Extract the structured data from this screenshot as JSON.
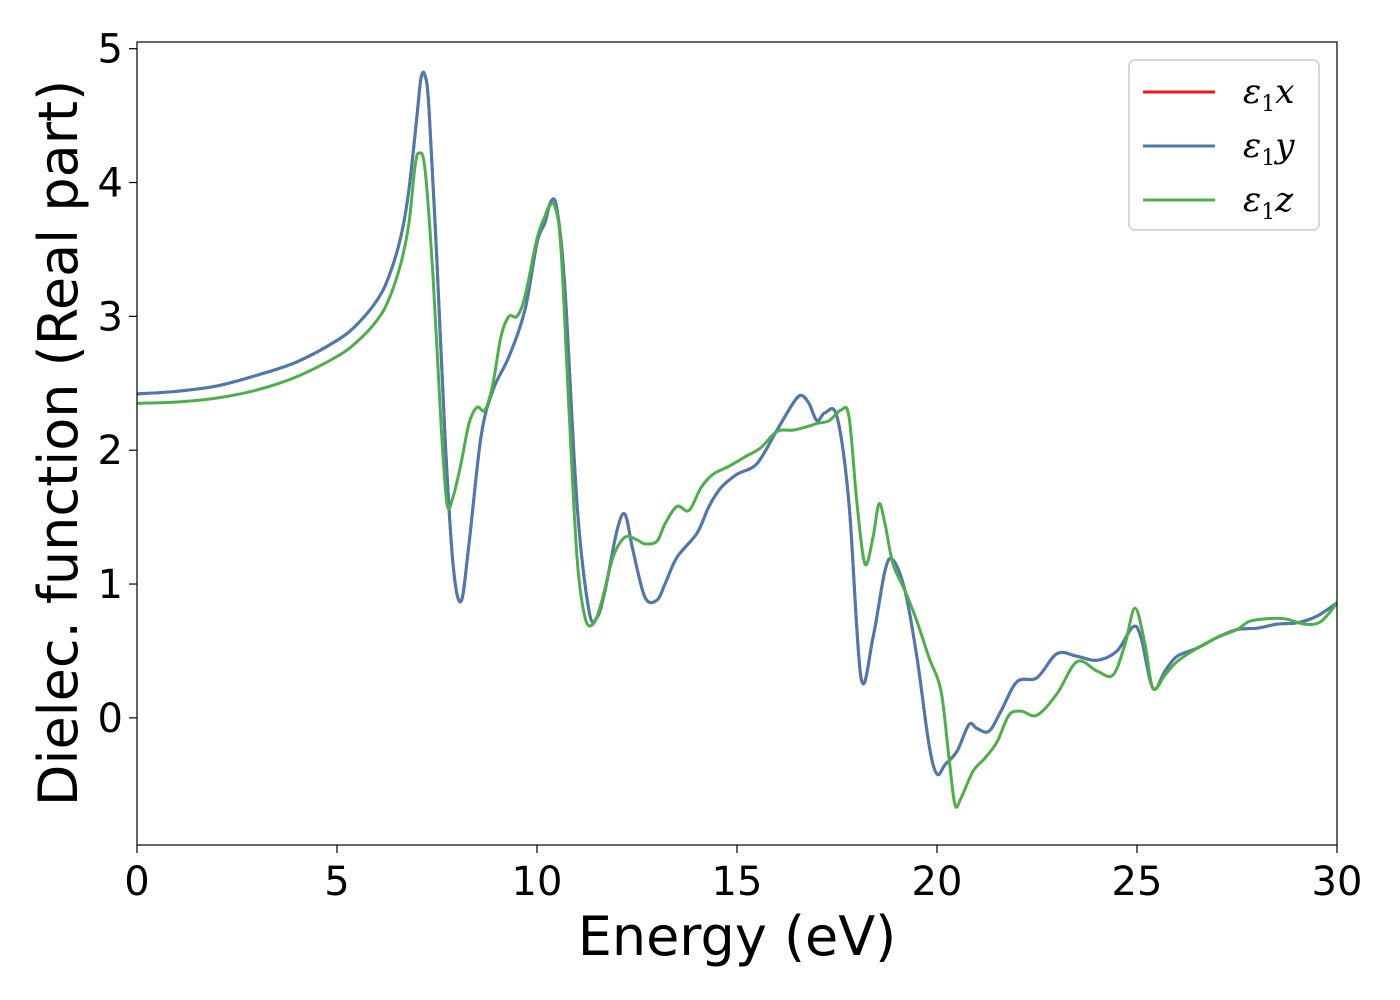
{
  "chart_data": {
    "type": "line",
    "title": "",
    "xlabel": "Energy (eV)",
    "ylabel": "Dielec. function (Real part)",
    "xlim": [
      0,
      30
    ],
    "ylim": [
      -0.95,
      5.05
    ],
    "xticks": [
      0,
      5,
      10,
      15,
      20,
      25,
      30
    ],
    "yticks": [
      0,
      1,
      2,
      3,
      4,
      5
    ],
    "grid": false,
    "legend_position": "top-right",
    "series": [
      {
        "name": "ε1x",
        "legend_base": "ε",
        "legend_sub": "1",
        "legend_var": "x",
        "color": "#e41a1c",
        "x": [
          0,
          1,
          2,
          3,
          4,
          5,
          5.5,
          6,
          6.3,
          6.6,
          6.8,
          7.0,
          7.1,
          7.2,
          7.3,
          7.5,
          7.7,
          7.9,
          8.1,
          8.3,
          8.6,
          8.9,
          9.3,
          9.7,
          10.0,
          10.2,
          10.35,
          10.5,
          10.7,
          11.0,
          11.3,
          11.5,
          11.7,
          12.0,
          12.2,
          12.4,
          12.7,
          13.0,
          13.2,
          13.5,
          14.0,
          14.3,
          14.6,
          15.0,
          15.5,
          16.0,
          16.4,
          16.6,
          16.8,
          17.0,
          17.2,
          17.5,
          17.8,
          18.1,
          18.4,
          18.7,
          18.9,
          19.2,
          19.5,
          19.8,
          20.0,
          20.2,
          20.5,
          20.8,
          21.0,
          21.3,
          21.6,
          22.0,
          22.5,
          23.0,
          23.5,
          24.0,
          24.5,
          24.9,
          25.1,
          25.4,
          25.7,
          26.0,
          26.5,
          27.0,
          27.5,
          28.0,
          28.5,
          29.0,
          29.5,
          30.0
        ],
        "values": [
          2.42,
          2.44,
          2.48,
          2.56,
          2.66,
          2.82,
          2.94,
          3.12,
          3.3,
          3.6,
          3.95,
          4.5,
          4.78,
          4.8,
          4.55,
          3.4,
          2.1,
          1.15,
          0.87,
          1.3,
          2.1,
          2.45,
          2.7,
          3.05,
          3.55,
          3.7,
          3.86,
          3.8,
          3.2,
          1.6,
          0.8,
          0.75,
          0.95,
          1.4,
          1.52,
          1.25,
          0.9,
          0.88,
          1.0,
          1.2,
          1.38,
          1.58,
          1.72,
          1.82,
          1.9,
          2.15,
          2.35,
          2.41,
          2.35,
          2.22,
          2.28,
          2.25,
          1.6,
          0.3,
          0.6,
          1.1,
          1.18,
          0.95,
          0.45,
          -0.2,
          -0.42,
          -0.35,
          -0.25,
          -0.05,
          -0.08,
          -0.1,
          0.05,
          0.27,
          0.3,
          0.48,
          0.46,
          0.43,
          0.5,
          0.68,
          0.6,
          0.22,
          0.35,
          0.46,
          0.52,
          0.6,
          0.66,
          0.67,
          0.7,
          0.71,
          0.76,
          0.86
        ]
      },
      {
        "name": "ε1y",
        "legend_base": "ε",
        "legend_sub": "1",
        "legend_var": "y",
        "color": "#4a7ab0",
        "x": [
          0,
          1,
          2,
          3,
          4,
          5,
          5.5,
          6,
          6.3,
          6.6,
          6.8,
          7.0,
          7.1,
          7.2,
          7.3,
          7.5,
          7.7,
          7.9,
          8.1,
          8.3,
          8.6,
          8.9,
          9.3,
          9.7,
          10.0,
          10.2,
          10.35,
          10.5,
          10.7,
          11.0,
          11.3,
          11.5,
          11.7,
          12.0,
          12.2,
          12.4,
          12.7,
          13.0,
          13.2,
          13.5,
          14.0,
          14.3,
          14.6,
          15.0,
          15.5,
          16.0,
          16.4,
          16.6,
          16.8,
          17.0,
          17.2,
          17.5,
          17.8,
          18.1,
          18.4,
          18.7,
          18.9,
          19.2,
          19.5,
          19.8,
          20.0,
          20.2,
          20.5,
          20.8,
          21.0,
          21.3,
          21.6,
          22.0,
          22.5,
          23.0,
          23.5,
          24.0,
          24.5,
          24.9,
          25.1,
          25.4,
          25.7,
          26.0,
          26.5,
          27.0,
          27.5,
          28.0,
          28.5,
          29.0,
          29.5,
          30.0
        ],
        "values": [
          2.42,
          2.44,
          2.48,
          2.56,
          2.66,
          2.82,
          2.94,
          3.12,
          3.3,
          3.6,
          3.95,
          4.5,
          4.78,
          4.8,
          4.55,
          3.4,
          2.1,
          1.15,
          0.87,
          1.3,
          2.1,
          2.45,
          2.7,
          3.05,
          3.55,
          3.7,
          3.86,
          3.8,
          3.2,
          1.6,
          0.8,
          0.75,
          0.95,
          1.4,
          1.52,
          1.25,
          0.9,
          0.88,
          1.0,
          1.2,
          1.38,
          1.58,
          1.72,
          1.82,
          1.9,
          2.15,
          2.35,
          2.41,
          2.35,
          2.22,
          2.28,
          2.25,
          1.6,
          0.3,
          0.6,
          1.1,
          1.18,
          0.95,
          0.45,
          -0.2,
          -0.42,
          -0.35,
          -0.25,
          -0.05,
          -0.08,
          -0.1,
          0.05,
          0.27,
          0.3,
          0.48,
          0.46,
          0.43,
          0.5,
          0.68,
          0.6,
          0.22,
          0.35,
          0.46,
          0.52,
          0.6,
          0.66,
          0.67,
          0.7,
          0.71,
          0.76,
          0.86
        ]
      },
      {
        "name": "ε1z",
        "legend_base": "ε",
        "legend_sub": "1",
        "legend_var": "z",
        "color": "#4daf4a",
        "x": [
          0,
          1,
          2,
          3,
          4,
          5,
          5.5,
          6,
          6.3,
          6.6,
          6.8,
          6.95,
          7.05,
          7.2,
          7.4,
          7.6,
          7.75,
          7.9,
          8.1,
          8.3,
          8.5,
          8.7,
          8.9,
          9.1,
          9.3,
          9.5,
          9.7,
          10.0,
          10.2,
          10.3,
          10.45,
          10.6,
          10.8,
          11.0,
          11.2,
          11.4,
          11.6,
          11.9,
          12.2,
          12.5,
          12.7,
          13.0,
          13.2,
          13.5,
          13.8,
          14.1,
          14.4,
          14.8,
          15.2,
          15.6,
          16.0,
          16.4,
          16.8,
          17.0,
          17.3,
          17.6,
          17.8,
          18.0,
          18.2,
          18.4,
          18.55,
          18.7,
          18.9,
          19.2,
          19.5,
          19.8,
          20.1,
          20.3,
          20.45,
          20.6,
          20.9,
          21.2,
          21.5,
          21.8,
          22.1,
          22.5,
          23.0,
          23.5,
          24.0,
          24.4,
          24.7,
          24.95,
          25.2,
          25.4,
          25.7,
          26.0,
          26.5,
          27.0,
          27.5,
          27.8,
          28.2,
          28.7,
          29.2,
          29.6,
          30.0
        ],
        "values": [
          2.35,
          2.36,
          2.39,
          2.45,
          2.55,
          2.7,
          2.81,
          2.97,
          3.13,
          3.4,
          3.7,
          4.12,
          4.22,
          4.1,
          3.3,
          2.2,
          1.6,
          1.65,
          1.9,
          2.2,
          2.32,
          2.3,
          2.5,
          2.85,
          3.0,
          3.0,
          3.15,
          3.58,
          3.75,
          3.82,
          3.82,
          3.5,
          2.3,
          1.2,
          0.75,
          0.7,
          0.85,
          1.2,
          1.35,
          1.33,
          1.3,
          1.32,
          1.45,
          1.58,
          1.55,
          1.72,
          1.82,
          1.88,
          1.95,
          2.02,
          2.14,
          2.15,
          2.18,
          2.2,
          2.22,
          2.3,
          2.25,
          1.6,
          1.15,
          1.35,
          1.6,
          1.45,
          1.15,
          0.95,
          0.72,
          0.45,
          0.2,
          -0.3,
          -0.65,
          -0.6,
          -0.4,
          -0.3,
          -0.18,
          0.02,
          0.05,
          0.02,
          0.18,
          0.42,
          0.35,
          0.32,
          0.55,
          0.82,
          0.55,
          0.22,
          0.32,
          0.42,
          0.52,
          0.6,
          0.66,
          0.72,
          0.74,
          0.74,
          0.7,
          0.72,
          0.86
        ]
      }
    ]
  }
}
